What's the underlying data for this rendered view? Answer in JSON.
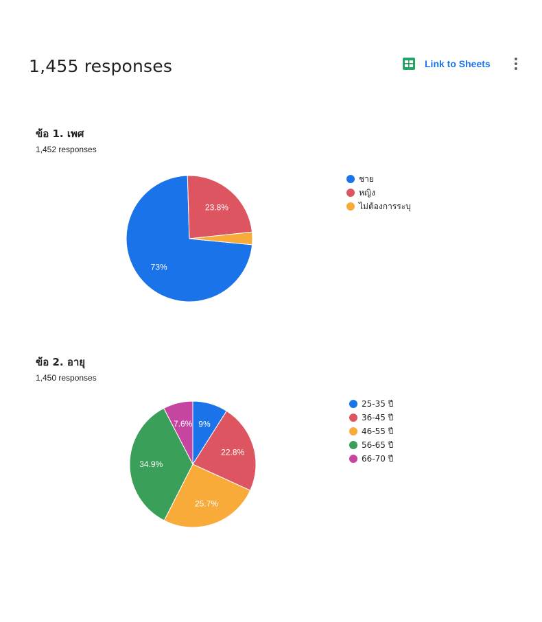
{
  "header": {
    "title": "1,455 responses",
    "link_label": "Link to Sheets",
    "link_icon": "sheets-icon",
    "more_icon": "more-vert-icon"
  },
  "questions": [
    {
      "title": "ข้อ 1. เพศ",
      "count": "1,452 responses"
    },
    {
      "title": "ข้อ 2. อายุ",
      "count": "1,450 responses"
    }
  ],
  "chart_data": [
    {
      "type": "pie",
      "title": "ข้อ 1. เพศ",
      "categories": [
        "ชาย",
        "หญิง",
        "ไม่ต้องการระบุ"
      ],
      "values": [
        73,
        23.8,
        3.2
      ],
      "labels": [
        "73%",
        "23.8%",
        ""
      ],
      "colors": [
        "#1a73e8",
        "#dd5561",
        "#f9ab3a"
      ],
      "start_angle": -5.5,
      "legend": "right"
    },
    {
      "type": "pie",
      "title": "ข้อ 2. อายุ",
      "categories": [
        "25-35 ปี",
        "36-45 ปี",
        "46-55 ปี",
        "56-65 ปี",
        "66-70 ปี"
      ],
      "values": [
        9,
        22.8,
        25.7,
        34.9,
        7.6
      ],
      "labels": [
        "9%",
        "22.8%",
        "25.7%",
        "34.9%",
        "7.6%"
      ],
      "colors": [
        "#1a73e8",
        "#dd5561",
        "#f9ab3a",
        "#3a9f58",
        "#c545a1"
      ],
      "start_angle": 90,
      "legend": "right"
    }
  ]
}
